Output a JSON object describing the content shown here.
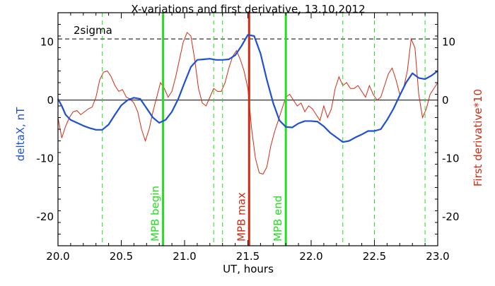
{
  "chart_data": {
    "type": "line",
    "title": "X-variations and first derivative, 13.10.2012",
    "xlabel": "UT, hours",
    "ylabel_left": "deltaX, nT",
    "ylabel_right": "First derivative*10",
    "xlim": [
      20.0,
      23.0
    ],
    "ylim": [
      -25,
      15
    ],
    "x_ticks": [
      20.0,
      20.5,
      21.0,
      21.5,
      22.0,
      22.5,
      23.0
    ],
    "x_tick_labels": [
      "20.0",
      "20.5",
      "21.0",
      "21.5",
      "22.0",
      "22.5",
      "23.0"
    ],
    "y_ticks": [
      10,
      0,
      -10,
      -20
    ],
    "y_tick_labels": [
      "10",
      "0",
      "-10",
      "-20"
    ],
    "grid": false,
    "colors": {
      "deltaX": "#1f4fd6",
      "derivative": "#d42a12",
      "mpb_lines": "#22e01f",
      "mpb_max_line": "#d42a12",
      "event_lines": "#22e01f",
      "reference_lines": "#000000"
    },
    "sigma_label": "2sigma",
    "sigma_level": 10.5,
    "zero_level": 0,
    "series": [
      {
        "name": "deltaX, nT",
        "x": [
          20.0,
          20.03,
          20.06,
          20.1,
          20.15,
          20.2,
          20.25,
          20.3,
          20.35,
          20.4,
          20.45,
          20.5,
          20.55,
          20.6,
          20.65,
          20.7,
          20.75,
          20.8,
          20.85,
          20.9,
          20.95,
          21.0,
          21.05,
          21.1,
          21.15,
          21.2,
          21.25,
          21.3,
          21.35,
          21.4,
          21.45,
          21.5,
          21.55,
          21.6,
          21.65,
          21.7,
          21.75,
          21.8,
          21.85,
          21.9,
          21.95,
          22.0,
          22.05,
          22.1,
          22.15,
          22.2,
          22.25,
          22.3,
          22.35,
          22.4,
          22.45,
          22.5,
          22.55,
          22.6,
          22.65,
          22.7,
          22.75,
          22.8,
          22.85,
          22.9,
          22.95,
          23.0
        ],
        "values": [
          0.2,
          -1.0,
          -2.5,
          -3.4,
          -3.9,
          -4.4,
          -4.8,
          -5.1,
          -5.1,
          -4.2,
          -2.5,
          -0.9,
          0.0,
          0.4,
          0.2,
          -1.4,
          -3.0,
          -3.9,
          -3.4,
          -2.0,
          0.2,
          3.0,
          5.7,
          6.9,
          7.0,
          7.1,
          6.9,
          6.9,
          7.0,
          7.7,
          9.3,
          11.2,
          11.0,
          8.0,
          3.5,
          -0.5,
          -3.5,
          -4.6,
          -4.7,
          -4.0,
          -3.6,
          -3.6,
          -3.7,
          -4.5,
          -5.6,
          -6.4,
          -7.2,
          -7.0,
          -6.4,
          -5.9,
          -5.3,
          -5.3,
          -5.0,
          -3.4,
          -1.5,
          0.8,
          3.0,
          4.6,
          3.8,
          3.6,
          4.2,
          5.0
        ]
      },
      {
        "name": "First derivative*10",
        "x": [
          20.0,
          20.03,
          20.06,
          20.09,
          20.12,
          20.15,
          20.18,
          20.21,
          20.24,
          20.27,
          20.3,
          20.33,
          20.36,
          20.39,
          20.42,
          20.45,
          20.48,
          20.51,
          20.54,
          20.57,
          20.6,
          20.63,
          20.66,
          20.69,
          20.72,
          20.75,
          20.78,
          20.81,
          20.84,
          20.87,
          20.9,
          20.93,
          20.96,
          20.99,
          21.02,
          21.05,
          21.08,
          21.11,
          21.14,
          21.17,
          21.2,
          21.23,
          21.26,
          21.29,
          21.32,
          21.35,
          21.38,
          21.41,
          21.44,
          21.47,
          21.5,
          21.53,
          21.56,
          21.59,
          21.62,
          21.65,
          21.68,
          21.71,
          21.74,
          21.77,
          21.8,
          21.83,
          21.86,
          21.89,
          21.92,
          21.95,
          21.98,
          22.01,
          22.04,
          22.07,
          22.1,
          22.13,
          22.16,
          22.19,
          22.22,
          22.25,
          22.28,
          22.31,
          22.34,
          22.37,
          22.4,
          22.43,
          22.46,
          22.49,
          22.52,
          22.55,
          22.58,
          22.61,
          22.64,
          22.67,
          22.7,
          22.73,
          22.76,
          22.79,
          22.82,
          22.85,
          22.88,
          22.91,
          22.94,
          22.97,
          23.0
        ],
        "values": [
          -3.0,
          -6.5,
          -4.5,
          -3.0,
          -2.0,
          -1.8,
          -2.5,
          -2.0,
          -1.5,
          -1.2,
          0.5,
          3.5,
          4.8,
          5.0,
          4.0,
          2.5,
          1.5,
          1.8,
          0.5,
          0.2,
          -0.5,
          -2.0,
          -5.0,
          -7.0,
          -5.0,
          -2.0,
          0.5,
          3.0,
          2.0,
          0.5,
          1.5,
          4.0,
          7.0,
          10.0,
          11.6,
          11.0,
          7.0,
          2.0,
          -0.5,
          -1.0,
          0.5,
          2.0,
          1.5,
          1.5,
          3.0,
          5.5,
          7.5,
          8.5,
          7.0,
          5.0,
          2.0,
          -5.0,
          -10.0,
          -12.5,
          -12.7,
          -11.5,
          -8.0,
          -5.5,
          -3.5,
          -1.5,
          0.5,
          1.0,
          0.0,
          -1.0,
          -0.5,
          -2.0,
          -1.0,
          -1.5,
          -2.5,
          -3.5,
          -1.0,
          -3.0,
          -1.5,
          2.0,
          4.0,
          2.5,
          3.0,
          2.0,
          2.0,
          2.5,
          1.5,
          0.5,
          2.5,
          1.0,
          0.0,
          0.5,
          2.5,
          4.5,
          5.5,
          3.5,
          1.0,
          2.0,
          5.0,
          10.5,
          9.0,
          1.0,
          -3.0,
          -1.5,
          1.0,
          2.0,
          3.0
        ]
      }
    ],
    "vlines": [
      {
        "x": 20.35,
        "style": "dashed",
        "color_key": "event_lines"
      },
      {
        "x": 20.83,
        "style": "solid",
        "color_key": "mpb_lines",
        "label": "MPB begin"
      },
      {
        "x": 21.23,
        "style": "dashed",
        "color_key": "event_lines"
      },
      {
        "x": 21.3,
        "style": "dashed",
        "color_key": "event_lines"
      },
      {
        "x": 21.51,
        "style": "solid",
        "color_key": "mpb_max_line",
        "label": "MPB max"
      },
      {
        "x": 21.8,
        "style": "solid",
        "color_key": "mpb_lines",
        "label": "MPB end"
      },
      {
        "x": 22.25,
        "style": "dashed",
        "color_key": "event_lines"
      },
      {
        "x": 22.5,
        "style": "dashed",
        "color_key": "event_lines"
      },
      {
        "x": 22.9,
        "style": "dashed",
        "color_key": "event_lines"
      }
    ]
  }
}
